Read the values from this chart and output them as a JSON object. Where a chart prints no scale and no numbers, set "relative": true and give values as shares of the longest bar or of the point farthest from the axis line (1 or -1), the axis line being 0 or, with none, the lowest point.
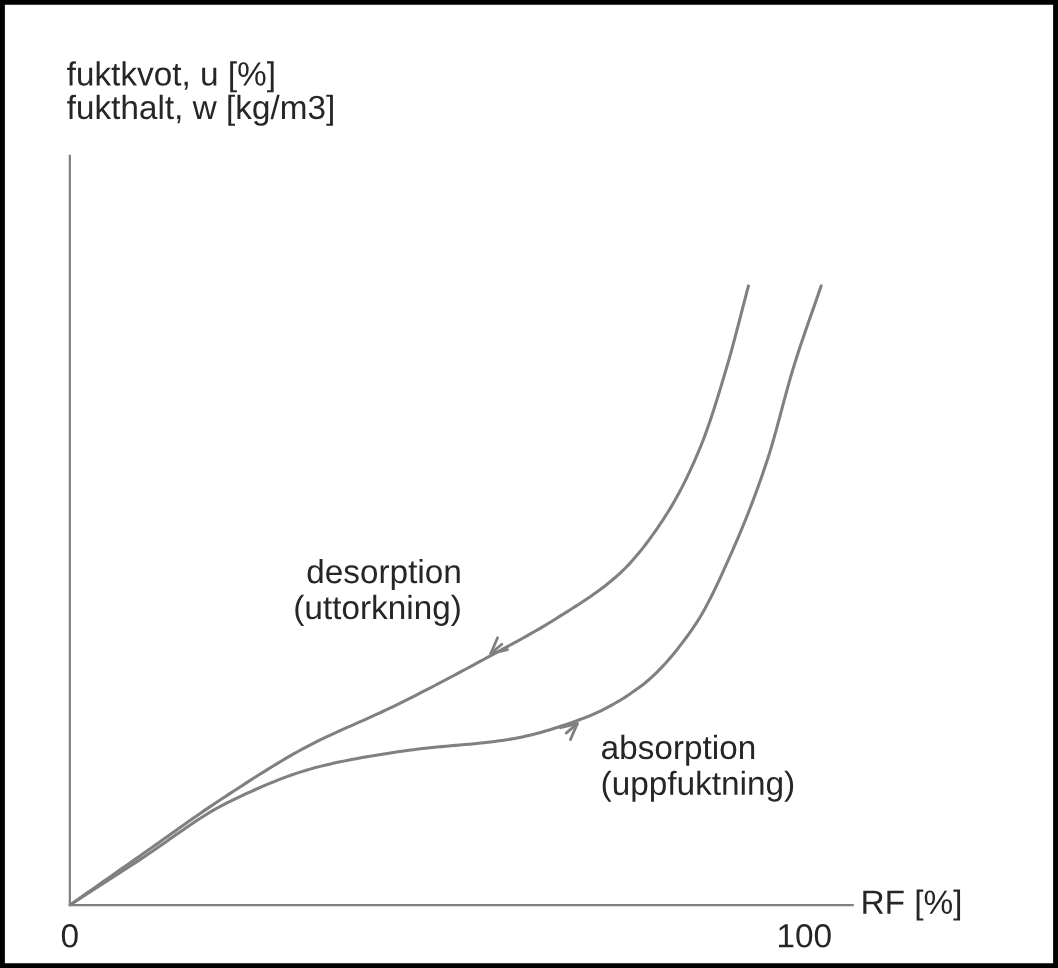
{
  "chart_data": {
    "type": "line",
    "relative": true,
    "ylabel": "fuktkvot, u [%]\nfukthalt, w [kg/m3]",
    "xlabel": "RF [%]",
    "xlim": [
      0,
      106.6
    ],
    "xticks": [
      0,
      100
    ],
    "tick_labels": "x",
    "grid": false,
    "marker": "none",
    "line_style": "solid",
    "series": [
      {
        "color": "#808080",
        "x": [
          0,
          9.5,
          20.5,
          32.3,
          44.1,
          56.4,
          66.8,
          75.0,
          81.4,
          85.9,
          89.5,
          92.4
        ],
        "values": [
          0,
          0.079,
          0.17,
          0.256,
          0.321,
          0.397,
          0.467,
          0.537,
          0.634,
          0.741,
          0.871,
          1.0
        ]
      },
      {
        "color": "#808080",
        "x": [
          0,
          9.5,
          21.4,
          34.1,
          46.8,
          59.5,
          70.0,
          77.7,
          85.0,
          90.5,
          95.0,
          98.6,
          102.3
        ],
        "values": [
          0,
          0.073,
          0.165,
          0.224,
          0.251,
          0.267,
          0.302,
          0.353,
          0.45,
          0.58,
          0.72,
          0.871,
          1.0
        ]
      }
    ],
    "annotations": [
      {
        "text": "desorption\n(uttorkning)",
        "x": 56.4,
        "y": 0.397
      },
      {
        "text": "absorption\n(uppfuktning)",
        "x": 70.0,
        "y": 0.302
      }
    ]
  }
}
